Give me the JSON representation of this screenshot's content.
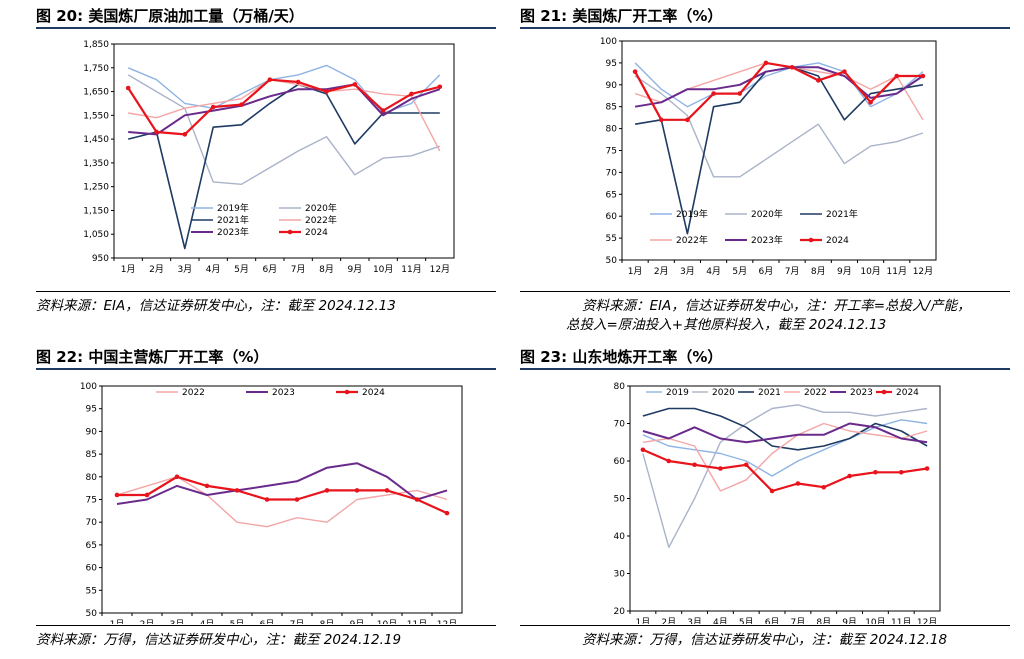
{
  "panels": [
    {
      "title": "图 20:  美国炼厂原油加工量（万桶/天）",
      "source": "资料来源：EIA，信达证券研发中心，注：截至 2024.12.13",
      "source2": ""
    },
    {
      "title": "图 21:  美国炼厂开工率（%）",
      "source": "资料来源：EIA，信达证券研发中心，注：开工率=总投入/产能，",
      "source2": "总投入=原油投入+其他原料投入，截至 2024.12.13"
    },
    {
      "title": "图 22:  中国主营炼厂开工率（%）",
      "source": "资料来源：万得，信达证券研发中心，注：截至 2024.12.19",
      "source2": ""
    },
    {
      "title": "图 23:  山东地炼开工率（%）",
      "source": "资料来源：万得，信达证券研发中心，注：截至 2024.12.18",
      "source2": ""
    }
  ],
  "colors": {
    "2019": "#8fb4e3",
    "2020": "#aab3c9",
    "2021": "#1f3b63",
    "2022": "#f4a6a6",
    "2023": "#6a2a8c",
    "2024": "#e8131b"
  },
  "chart_data": [
    {
      "type": "line",
      "xlabel": "",
      "ylabel": "",
      "x": [
        "1月",
        "2月",
        "3月",
        "4月",
        "5月",
        "6月",
        "7月",
        "8月",
        "9月",
        "10月",
        "11月",
        "12月"
      ],
      "ylim": [
        950,
        1850
      ],
      "yticks": [
        "950",
        "1,050",
        "1,150",
        "1,250",
        "1,350",
        "1,450",
        "1,550",
        "1,650",
        "1,750",
        "1,850"
      ],
      "legend": [
        [
          "2019年",
          "2020年"
        ],
        [
          "2021年",
          "2022年"
        ],
        [
          "2023年",
          "2024"
        ]
      ],
      "series": [
        {
          "name": "2019年",
          "values": [
            1750,
            1700,
            1600,
            1580,
            1640,
            1700,
            1720,
            1760,
            1700,
            1560,
            1600,
            1720
          ]
        },
        {
          "name": "2020年",
          "values": [
            1720,
            1650,
            1580,
            1270,
            1260,
            1330,
            1400,
            1460,
            1300,
            1370,
            1380,
            1420
          ]
        },
        {
          "name": "2021年",
          "values": [
            1450,
            1480,
            990,
            1500,
            1510,
            1600,
            1680,
            1640,
            1430,
            1560,
            1560,
            1560
          ]
        },
        {
          "name": "2022年",
          "values": [
            1560,
            1540,
            1580,
            1600,
            1620,
            1700,
            1680,
            1650,
            1660,
            1640,
            1630,
            1400
          ]
        },
        {
          "name": "2023年",
          "values": [
            1480,
            1470,
            1550,
            1570,
            1590,
            1630,
            1660,
            1660,
            1680,
            1550,
            1620,
            1660
          ]
        },
        {
          "name": "2024",
          "values": [
            1665,
            1480,
            1470,
            1585,
            1595,
            1700,
            1690,
            1650,
            1680,
            1570,
            1640,
            1670
          ]
        }
      ]
    },
    {
      "type": "line",
      "xlabel": "",
      "ylabel": "",
      "x": [
        "1月",
        "2月",
        "3月",
        "4月",
        "5月",
        "6月",
        "7月",
        "8月",
        "9月",
        "10月",
        "11月",
        "12月"
      ],
      "ylim": [
        50,
        100
      ],
      "yticks": [
        "50",
        "55",
        "60",
        "65",
        "70",
        "75",
        "80",
        "85",
        "90",
        "95",
        "100"
      ],
      "legend": [
        [
          "2019年",
          "2020年",
          "2021年"
        ],
        [
          "2022年",
          "2023年",
          "2024"
        ]
      ],
      "series": [
        {
          "name": "2019年",
          "values": [
            95,
            89,
            85,
            88,
            88,
            92,
            94,
            95,
            93,
            85,
            88,
            93
          ]
        },
        {
          "name": "2020年",
          "values": [
            92,
            88,
            83,
            69,
            69,
            73,
            77,
            81,
            72,
            76,
            77,
            79
          ]
        },
        {
          "name": "2021年",
          "values": [
            81,
            82,
            56,
            85,
            86,
            93,
            94,
            92,
            82,
            88,
            89,
            90
          ]
        },
        {
          "name": "2022年",
          "values": [
            88,
            86,
            89,
            91,
            93,
            95,
            94,
            93,
            92,
            89,
            92,
            82
          ]
        },
        {
          "name": "2023年",
          "values": [
            85,
            86,
            89,
            89,
            90,
            93,
            94,
            94,
            92,
            87,
            88,
            92
          ]
        },
        {
          "name": "2024",
          "values": [
            93,
            82,
            82,
            88,
            88,
            95,
            94,
            91,
            93,
            86,
            92,
            92
          ]
        }
      ]
    },
    {
      "type": "line",
      "xlabel": "",
      "ylabel": "",
      "x": [
        "1月",
        "2月",
        "3月",
        "4月",
        "5月",
        "6月",
        "7月",
        "8月",
        "9月",
        "10月",
        "11月",
        "12月"
      ],
      "ylim": [
        50,
        100
      ],
      "yticks": [
        "50",
        "55",
        "60",
        "65",
        "70",
        "75",
        "80",
        "85",
        "90",
        "95",
        "100"
      ],
      "legend": [
        [
          "2022",
          "2023",
          "2024"
        ]
      ],
      "series": [
        {
          "name": "2022",
          "values": [
            76,
            78,
            80,
            76,
            70,
            69,
            71,
            70,
            75,
            76,
            77,
            75
          ]
        },
        {
          "name": "2023",
          "values": [
            74,
            75,
            78,
            76,
            77,
            78,
            79,
            82,
            83,
            80,
            75,
            77
          ]
        },
        {
          "name": "2024",
          "values": [
            76,
            76,
            80,
            78,
            77,
            75,
            75,
            77,
            77,
            77,
            75,
            72
          ]
        }
      ]
    },
    {
      "type": "line",
      "xlabel": "",
      "ylabel": "",
      "x": [
        "1月",
        "2月",
        "3月",
        "4月",
        "5月",
        "6月",
        "7月",
        "8月",
        "9月",
        "10月",
        "11月",
        "12月"
      ],
      "ylim": [
        20,
        80
      ],
      "yticks": [
        "20",
        "30",
        "40",
        "50",
        "60",
        "70",
        "80"
      ],
      "legend": [
        [
          "2019",
          "2020",
          "2021",
          "2022",
          "2023",
          "2024"
        ]
      ],
      "series": [
        {
          "name": "2019",
          "values": [
            67,
            64,
            63,
            62,
            60,
            56,
            60,
            63,
            66,
            69,
            71,
            70
          ]
        },
        {
          "name": "2020",
          "values": [
            62,
            37,
            50,
            65,
            70,
            74,
            75,
            73,
            73,
            72,
            73,
            74
          ]
        },
        {
          "name": "2021",
          "values": [
            72,
            74,
            74,
            72,
            69,
            64,
            63,
            64,
            66,
            70,
            68,
            64
          ]
        },
        {
          "name": "2022",
          "values": [
            65,
            66,
            64,
            52,
            55,
            62,
            67,
            70,
            68,
            67,
            66,
            68
          ]
        },
        {
          "name": "2023",
          "values": [
            68,
            66,
            69,
            66,
            65,
            66,
            67,
            67,
            70,
            69,
            66,
            65
          ]
        },
        {
          "name": "2024",
          "values": [
            63,
            60,
            59,
            58,
            59,
            52,
            54,
            53,
            56,
            57,
            57,
            58
          ]
        }
      ]
    }
  ]
}
